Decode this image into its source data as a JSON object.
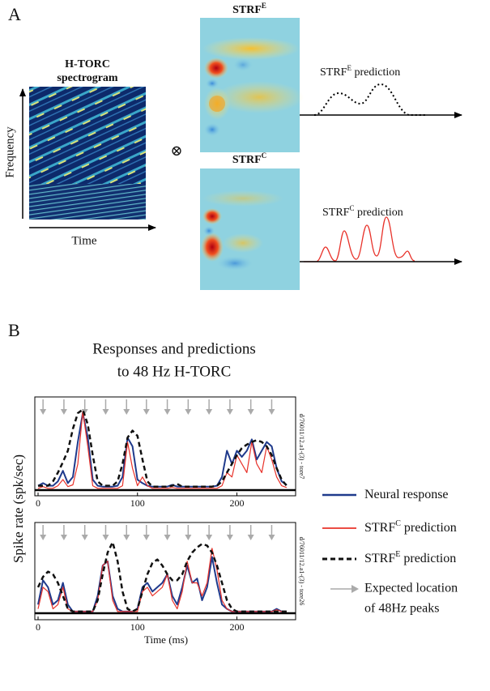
{
  "panel_a": {
    "label": "A",
    "spectrogram": {
      "title": [
        "H-TORC",
        "spectrogram"
      ],
      "ylabel": "Frequency",
      "xlabel": "Time"
    },
    "operator": "⊗",
    "strf_e": {
      "title": [
        "STRF",
        "E"
      ],
      "prediction": [
        "STRF",
        "E",
        " prediction"
      ]
    },
    "strf_c": {
      "title": [
        "STRF",
        "C"
      ],
      "prediction": [
        "STRF",
        "C",
        " prediction"
      ]
    }
  },
  "panel_b": {
    "label": "B",
    "title": [
      "Responses and predictions",
      "to 48 Hz H-TORC"
    ]
  },
  "chart_data": [
    {
      "type": "line",
      "ylabel": "Spike rate (spk/sec)",
      "side_label": "d/76011/12.a1-(3) - tore7",
      "xlim": [
        0,
        255
      ],
      "ylim": [
        0,
        1
      ],
      "xticks": [
        0,
        100,
        200
      ],
      "x": [
        0,
        5,
        10,
        15,
        20,
        25,
        30,
        35,
        40,
        45,
        50,
        55,
        60,
        65,
        70,
        75,
        80,
        85,
        90,
        95,
        100,
        105,
        110,
        115,
        120,
        125,
        130,
        135,
        140,
        145,
        150,
        155,
        160,
        165,
        170,
        175,
        180,
        185,
        190,
        195,
        200,
        205,
        210,
        215,
        220,
        225,
        230,
        235,
        240,
        245,
        250
      ],
      "peak_arrows_x": [
        5,
        26,
        47,
        68,
        89,
        109,
        130,
        151,
        172,
        193,
        214,
        235
      ],
      "arrow_legend": [
        "Expected location",
        "of 48Hz peaks"
      ],
      "arrow_color": "#aaaaaa",
      "series": [
        {
          "name": [
            "Neural response"
          ],
          "color": "#1f3a8c",
          "style": "solid",
          "values": [
            0.05,
            0.08,
            0.05,
            0.05,
            0.1,
            0.22,
            0.08,
            0.15,
            0.55,
            0.88,
            0.6,
            0.12,
            0.05,
            0.04,
            0.04,
            0.04,
            0.05,
            0.15,
            0.6,
            0.5,
            0.12,
            0.08,
            0.05,
            0.04,
            0.04,
            0.04,
            0.04,
            0.06,
            0.04,
            0.04,
            0.04,
            0.04,
            0.04,
            0.04,
            0.04,
            0.04,
            0.05,
            0.15,
            0.45,
            0.3,
            0.45,
            0.38,
            0.45,
            0.58,
            0.35,
            0.45,
            0.55,
            0.5,
            0.25,
            0.1,
            0.06
          ]
        },
        {
          "name": [
            "STRF",
            "C",
            " prediction"
          ],
          "color": "#e8322a",
          "style": "thin",
          "values": [
            0.02,
            0.04,
            0.02,
            0.02,
            0.05,
            0.12,
            0.04,
            0.06,
            0.3,
            0.9,
            0.5,
            0.05,
            0.02,
            0.02,
            0.02,
            0.02,
            0.02,
            0.05,
            0.55,
            0.25,
            0.05,
            0.15,
            0.05,
            0.02,
            0.02,
            0.02,
            0.02,
            0.03,
            0.02,
            0.02,
            0.02,
            0.02,
            0.02,
            0.02,
            0.02,
            0.02,
            0.02,
            0.05,
            0.2,
            0.15,
            0.4,
            0.3,
            0.2,
            0.55,
            0.3,
            0.2,
            0.5,
            0.35,
            0.15,
            0.05,
            0.03
          ]
        },
        {
          "name": [
            "STRF",
            "E",
            " prediction"
          ],
          "color": "#111111",
          "style": "dashed",
          "values": [
            0.05,
            0.05,
            0.05,
            0.1,
            0.2,
            0.32,
            0.45,
            0.7,
            0.88,
            0.92,
            0.75,
            0.4,
            0.1,
            0.05,
            0.05,
            0.05,
            0.1,
            0.3,
            0.6,
            0.68,
            0.62,
            0.35,
            0.1,
            0.04,
            0.04,
            0.04,
            0.04,
            0.05,
            0.07,
            0.04,
            0.04,
            0.04,
            0.04,
            0.04,
            0.04,
            0.04,
            0.05,
            0.1,
            0.2,
            0.3,
            0.4,
            0.48,
            0.52,
            0.55,
            0.57,
            0.55,
            0.5,
            0.4,
            0.25,
            0.12,
            0.05
          ]
        }
      ]
    },
    {
      "type": "line",
      "xlabel": "Time (ms)",
      "side_label": "d/76011/12.a1-(3) - tore26",
      "xlim": [
        0,
        255
      ],
      "ylim": [
        0,
        1
      ],
      "xticks": [
        0,
        100,
        200
      ],
      "x": [
        0,
        5,
        10,
        15,
        20,
        25,
        30,
        35,
        40,
        45,
        50,
        55,
        60,
        65,
        70,
        75,
        80,
        85,
        90,
        95,
        100,
        105,
        110,
        115,
        120,
        125,
        130,
        135,
        140,
        145,
        150,
        155,
        160,
        165,
        170,
        175,
        180,
        185,
        190,
        195,
        200,
        205,
        210,
        215,
        220,
        225,
        230,
        235,
        240,
        245,
        250
      ],
      "peak_arrows_x": [
        5,
        26,
        47,
        68,
        89,
        109,
        130,
        151,
        172,
        193,
        214,
        235
      ],
      "arrow_color": "#aaaaaa",
      "series": [
        {
          "color": "#1f3a8c",
          "style": "solid",
          "values": [
            0.1,
            0.38,
            0.3,
            0.1,
            0.15,
            0.35,
            0.1,
            0.02,
            0.02,
            0.02,
            0.02,
            0.02,
            0.2,
            0.55,
            0.6,
            0.2,
            0.05,
            0.02,
            0.02,
            0.02,
            0.05,
            0.3,
            0.35,
            0.25,
            0.3,
            0.35,
            0.45,
            0.2,
            0.1,
            0.3,
            0.55,
            0.35,
            0.4,
            0.15,
            0.3,
            0.65,
            0.35,
            0.1,
            0.05,
            0.02,
            0.02,
            0.02,
            0.02,
            0.02,
            0.02,
            0.02,
            0.02,
            0.02,
            0.05,
            0.02,
            0.02
          ]
        },
        {
          "color": "#e8322a",
          "style": "thin",
          "values": [
            0.05,
            0.3,
            0.25,
            0.05,
            0.1,
            0.3,
            0.05,
            0.02,
            0.02,
            0.02,
            0.02,
            0.02,
            0.15,
            0.55,
            0.6,
            0.15,
            0.02,
            0.02,
            0.02,
            0.02,
            0.02,
            0.25,
            0.3,
            0.2,
            0.25,
            0.3,
            0.45,
            0.15,
            0.05,
            0.25,
            0.6,
            0.35,
            0.35,
            0.2,
            0.35,
            0.75,
            0.5,
            0.15,
            0.05,
            0.02,
            0.02,
            0.02,
            0.02,
            0.02,
            0.02,
            0.02,
            0.02,
            0.02,
            0.04,
            0.02,
            0.02
          ]
        },
        {
          "color": "#111111",
          "style": "dashed",
          "values": [
            0.3,
            0.42,
            0.48,
            0.45,
            0.35,
            0.2,
            0.05,
            0.02,
            0.02,
            0.02,
            0.02,
            0.02,
            0.15,
            0.45,
            0.7,
            0.82,
            0.6,
            0.25,
            0.05,
            0.02,
            0.05,
            0.25,
            0.45,
            0.58,
            0.62,
            0.55,
            0.45,
            0.38,
            0.38,
            0.45,
            0.6,
            0.7,
            0.76,
            0.8,
            0.78,
            0.7,
            0.55,
            0.35,
            0.15,
            0.05,
            0.02,
            0.02,
            0.02,
            0.02,
            0.02,
            0.02,
            0.02,
            0.02,
            0.02,
            0.02,
            0.02
          ]
        }
      ]
    }
  ]
}
